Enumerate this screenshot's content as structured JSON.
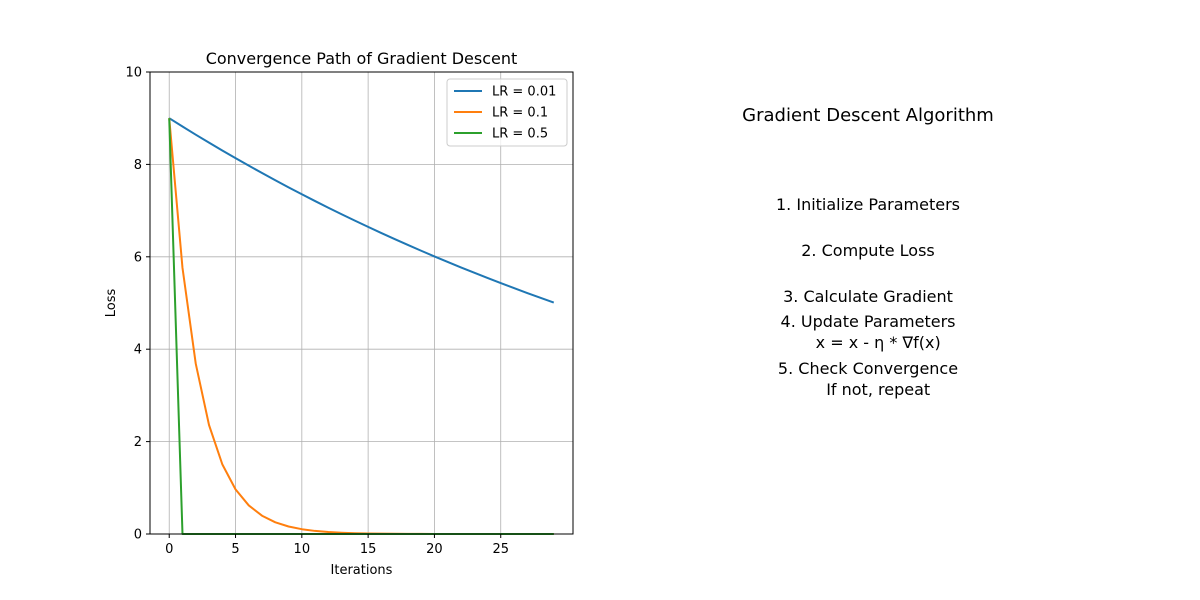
{
  "chart_data": {
    "type": "line",
    "title": "Convergence Path of Gradient Descent",
    "xlabel": "Iterations",
    "ylabel": "Loss",
    "xlim": [
      -1.45,
      30.45
    ],
    "ylim": [
      0,
      10
    ],
    "xticks": [
      0,
      5,
      10,
      15,
      20,
      25
    ],
    "yticks": [
      0,
      2,
      4,
      6,
      8,
      10
    ],
    "grid": true,
    "legend_position": "top-right",
    "series": [
      {
        "name": "LR = 0.01",
        "color": "#1f77b4",
        "x": [
          0,
          1,
          2,
          3,
          4,
          5,
          6,
          7,
          8,
          9,
          10,
          11,
          12,
          13,
          14,
          15,
          16,
          17,
          18,
          19,
          20,
          21,
          22,
          23,
          24,
          25,
          26,
          27,
          28,
          29
        ],
        "y": [
          9.0,
          8.82,
          8.6436,
          8.4707,
          8.3013,
          8.1353,
          7.9726,
          7.8131,
          7.6569,
          7.5037,
          7.3537,
          7.2066,
          7.0625,
          6.9212,
          6.7828,
          6.6471,
          6.5142,
          6.3839,
          6.2562,
          6.1311,
          6.0085,
          5.8883,
          5.7705,
          5.6551,
          5.542,
          5.4312,
          5.3226,
          5.2161,
          5.1118,
          5.0096
        ]
      },
      {
        "name": "LR = 0.1",
        "color": "#ff7f0e",
        "x": [
          0,
          1,
          2,
          3,
          4,
          5,
          6,
          7,
          8,
          9,
          10,
          11,
          12,
          13,
          14,
          15,
          16,
          17,
          18,
          19,
          20,
          21,
          22,
          23,
          24,
          25,
          26,
          27,
          28,
          29
        ],
        "y": [
          9.0,
          5.76,
          3.6864,
          2.3593,
          1.5099,
          0.9664,
          0.6185,
          0.3958,
          0.2533,
          0.1621,
          0.1038,
          0.0664,
          0.0425,
          0.0272,
          0.0174,
          0.0111,
          0.0071,
          0.0046,
          0.0029,
          0.0019,
          0.0012,
          0.0008,
          0.0005,
          0.0003,
          0.0002,
          0.0001,
          0.0001,
          0.0,
          0.0,
          0.0
        ]
      },
      {
        "name": "LR = 0.5",
        "color": "#2ca02c",
        "x": [
          0,
          1,
          2,
          3,
          4,
          5,
          6,
          7,
          8,
          9,
          10,
          11,
          12,
          13,
          14,
          15,
          16,
          17,
          18,
          19,
          20,
          21,
          22,
          23,
          24,
          25,
          26,
          27,
          28,
          29
        ],
        "y": [
          9.0,
          0.0,
          0.0,
          0.0,
          0.0,
          0.0,
          0.0,
          0.0,
          0.0,
          0.0,
          0.0,
          0.0,
          0.0,
          0.0,
          0.0,
          0.0,
          0.0,
          0.0,
          0.0,
          0.0,
          0.0,
          0.0,
          0.0,
          0.0,
          0.0,
          0.0,
          0.0,
          0.0,
          0.0,
          0.0
        ]
      }
    ]
  },
  "algorithm": {
    "title": "Gradient Descent Algorithm",
    "steps": [
      "1. Initialize Parameters",
      "2. Compute Loss",
      "3. Calculate Gradient",
      "4. Update Parameters\n    x = x - η * ∇f(x)",
      "5. Check Convergence\n    If not, repeat"
    ]
  }
}
